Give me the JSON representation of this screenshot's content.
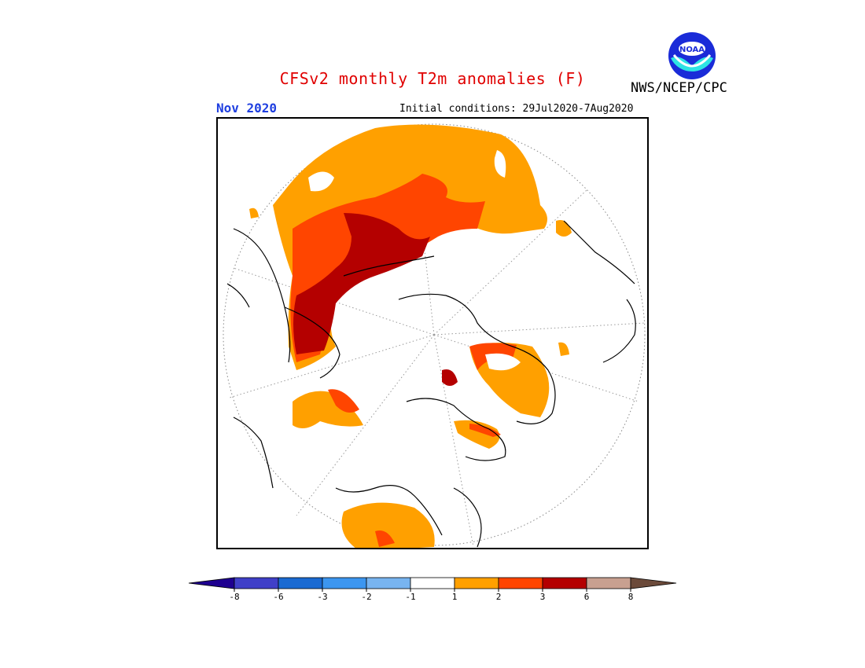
{
  "header": {
    "title": "CFSv2 monthly T2m anomalies (F)",
    "month": "Nov 2020",
    "initial_conditions": "Initial conditions: 29Jul2020-7Aug2020",
    "agency": "NWS/NCEP/CPC",
    "logo_text": "NOAA"
  },
  "colors": {
    "title": "#e00000",
    "month": "#1f3fe0",
    "anomaly_1_2": "#ffa000",
    "anomaly_2_3": "#ff4500",
    "anomaly_3_6": "#b40000",
    "anomaly_6_8": "#c8a090",
    "coastline": "#000000",
    "grid": "#888888"
  },
  "legend": {
    "bins": [
      {
        "color": "#1e0090",
        "shape": "left-arrow"
      },
      {
        "color": "#4040c8"
      },
      {
        "color": "#1a6ad2"
      },
      {
        "color": "#3c96f0"
      },
      {
        "color": "#78b4f0"
      },
      {
        "color": "#ffffff"
      },
      {
        "color": "#ffa000"
      },
      {
        "color": "#ff4500"
      },
      {
        "color": "#b40000"
      },
      {
        "color": "#c8a090"
      },
      {
        "color": "#6b4a3a",
        "shape": "right-arrow"
      }
    ],
    "labels": [
      "-8",
      "-6",
      "-3",
      "-2",
      "-1",
      "1",
      "2",
      "3",
      "6",
      "8"
    ]
  }
}
